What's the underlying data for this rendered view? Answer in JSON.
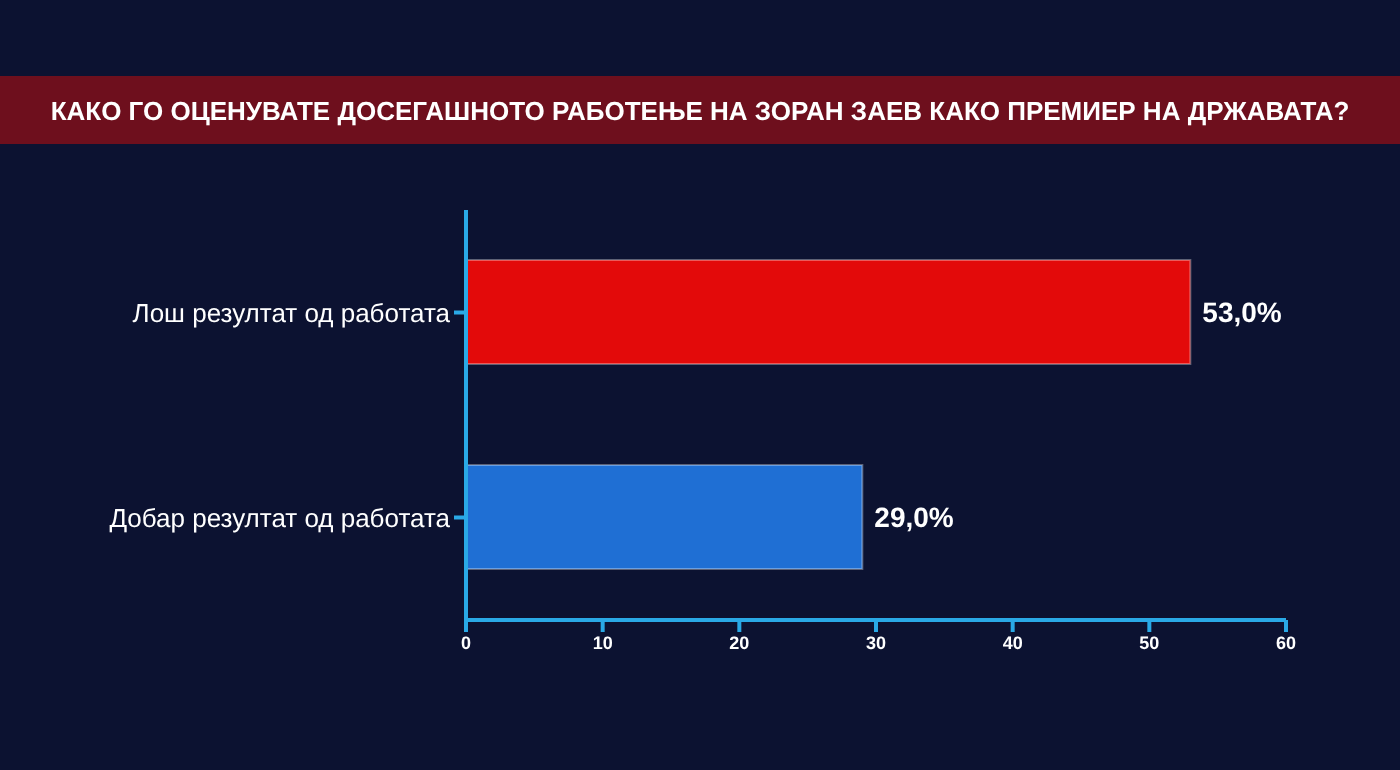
{
  "chart_data": {
    "type": "bar",
    "orientation": "horizontal",
    "title": "КАКО ГО ОЦЕНУВАТЕ ДОСЕГАШНОТО РАБОТЕЊЕ НА ЗОРАН ЗАЕВ КАКО ПРЕМИЕР НА ДРЖАВАТА?",
    "categories": [
      "Лош резултат од работата",
      "Добар резултат од работата"
    ],
    "values": [
      53.0,
      29.0
    ],
    "value_labels": [
      "53,0%",
      "29,0%"
    ],
    "colors": [
      "#e30a0a",
      "#1f6fd4"
    ],
    "xlim": [
      0,
      60
    ],
    "xticks": [
      0,
      10,
      20,
      30,
      40,
      50,
      60
    ]
  }
}
